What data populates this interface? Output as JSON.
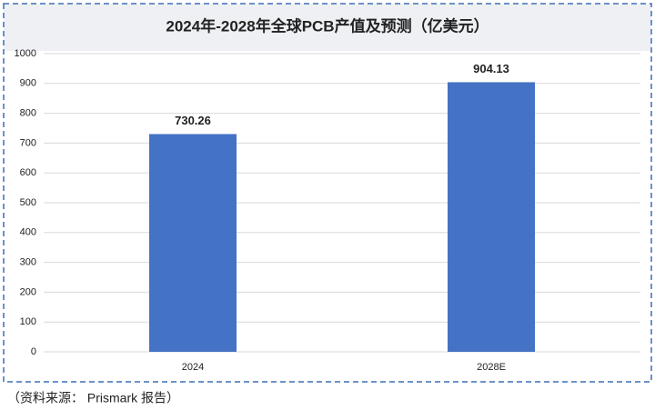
{
  "chart_data": {
    "type": "bar",
    "title": "2024年-2028年全球PCB产值及预测（亿美元）",
    "categories": [
      "2024",
      "2028E"
    ],
    "values": [
      730.26,
      904.13
    ],
    "color": "#4472c4",
    "ylim": [
      0,
      1000
    ],
    "yticks": [
      0,
      100,
      200,
      300,
      400,
      500,
      600,
      700,
      800,
      900,
      1000
    ],
    "grid": true
  },
  "source": "（资料来源： Prismark 报告）"
}
